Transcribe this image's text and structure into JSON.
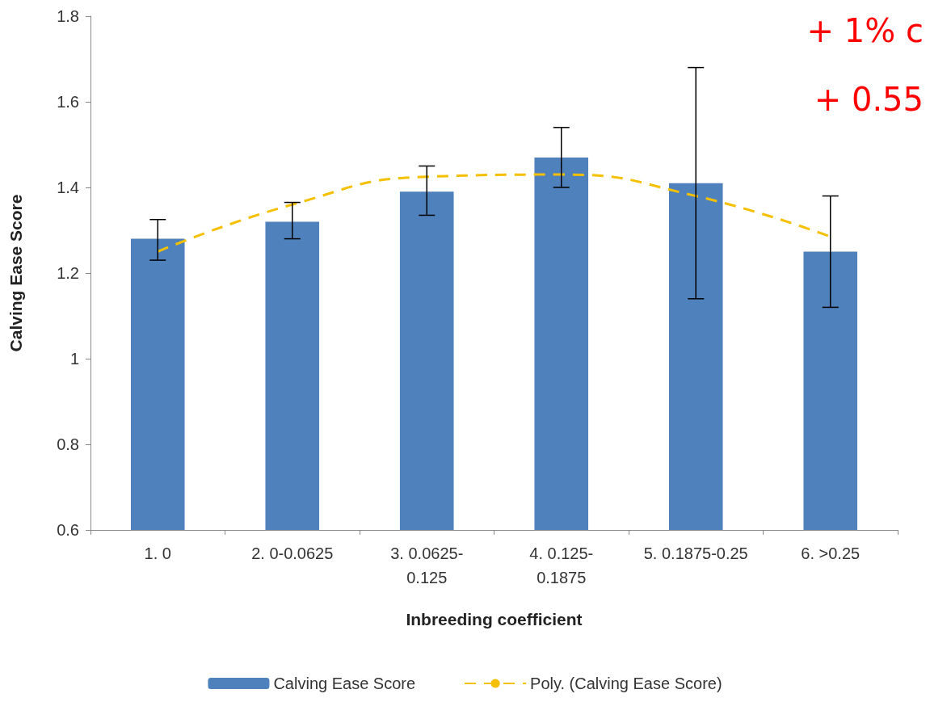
{
  "chart_data": {
    "type": "bar",
    "xlabel": "Inbreeding coefficient",
    "ylabel": "Calving Ease Score",
    "categories": [
      "1. 0",
      "2. 0-0.0625",
      "3. 0.0625-\n0.125",
      "4. 0.125-\n0.1875",
      "5. 0.1875-0.25",
      "6. >0.25"
    ],
    "series": [
      {
        "name": "Calving Ease Score",
        "color": "#4f81bd",
        "values": [
          1.28,
          1.32,
          1.39,
          1.47,
          1.41,
          1.25
        ],
        "errors": [
          [
            1.23,
            1.325
          ],
          [
            1.28,
            1.365
          ],
          [
            1.335,
            1.45
          ],
          [
            1.4,
            1.54
          ],
          [
            1.14,
            1.68
          ],
          [
            1.12,
            1.38
          ]
        ]
      },
      {
        "name": "Poly. (Calving Ease Score)",
        "type": "line",
        "color": "#f5c000",
        "line_style": "dashed",
        "marker": "none",
        "values": [
          1.25,
          1.36,
          1.425,
          1.43,
          1.38,
          1.285
        ]
      }
    ],
    "ylim": [
      0.6,
      1.8
    ],
    "yticks": [
      0.6,
      0.8,
      1,
      1.2,
      1.4,
      1.6,
      1.8
    ],
    "grid": false,
    "legend": "bottom",
    "annotations": [
      "+ 1% c",
      "+ 0.55"
    ]
  }
}
